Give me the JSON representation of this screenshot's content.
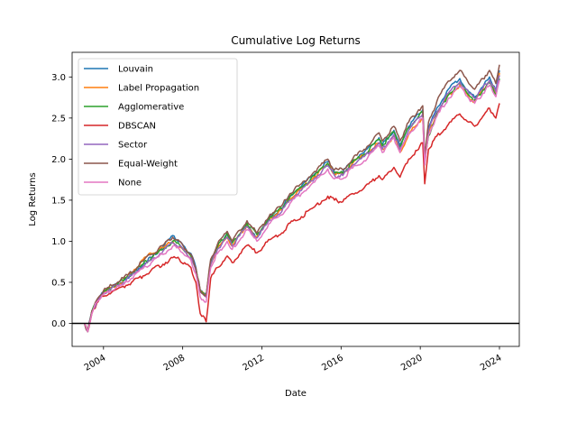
{
  "chart_data": {
    "type": "line",
    "title": "Cumulative Log Returns",
    "xlabel": "Date",
    "ylabel": "Log Returns",
    "xlim": [
      "2002-06-01",
      "2025-01-01"
    ],
    "ylim": [
      -0.28,
      3.3
    ],
    "x_ticks": [
      "2004",
      "2008",
      "2012",
      "2016",
      "2020",
      "2024"
    ],
    "y_ticks": [
      "0.0",
      "0.5",
      "1.0",
      "1.5",
      "2.0",
      "2.5",
      "3.0"
    ],
    "grid": false,
    "legend_position": "top-left",
    "baseline": 0,
    "x": [
      "2003-01-15",
      "2003-03-15",
      "2003-06-01",
      "2003-09-01",
      "2004-01-01",
      "2004-06-01",
      "2005-01-01",
      "2005-06-01",
      "2006-01-01",
      "2006-06-01",
      "2007-01-01",
      "2007-07-01",
      "2007-11-01",
      "2008-03-01",
      "2008-06-01",
      "2008-09-01",
      "2008-11-20",
      "2009-03-09",
      "2009-06-01",
      "2009-10-01",
      "2010-04-01",
      "2010-07-01",
      "2011-04-01",
      "2011-10-01",
      "2012-06-01",
      "2013-01-01",
      "2013-06-01",
      "2014-01-01",
      "2014-09-01",
      "2015-05-01",
      "2015-09-01",
      "2016-02-01",
      "2016-08-01",
      "2017-03-01",
      "2017-12-01",
      "2018-02-01",
      "2018-09-01",
      "2018-12-24",
      "2019-06-01",
      "2019-12-01",
      "2020-02-15",
      "2020-03-23",
      "2020-06-01",
      "2020-11-01",
      "2021-06-01",
      "2021-12-31",
      "2022-06-15",
      "2022-10-01",
      "2023-03-01",
      "2023-07-01",
      "2023-10-27",
      "2024-01-01"
    ],
    "series": [
      {
        "name": "Louvain",
        "color": "#1f77b4",
        "values": [
          0.0,
          -0.1,
          0.15,
          0.28,
          0.38,
          0.44,
          0.52,
          0.6,
          0.72,
          0.8,
          0.93,
          1.07,
          1.0,
          0.9,
          0.85,
          0.68,
          0.4,
          0.34,
          0.75,
          0.92,
          1.08,
          0.95,
          1.2,
          1.05,
          1.3,
          1.4,
          1.55,
          1.67,
          1.82,
          1.97,
          1.84,
          1.84,
          1.98,
          2.08,
          2.26,
          2.18,
          2.35,
          2.17,
          2.4,
          2.55,
          2.6,
          2.0,
          2.38,
          2.62,
          2.85,
          2.98,
          2.82,
          2.75,
          2.88,
          3.0,
          2.83,
          3.08
        ]
      },
      {
        "name": "Label Propagation",
        "color": "#ff7f0e",
        "values": [
          0.0,
          -0.1,
          0.15,
          0.28,
          0.37,
          0.44,
          0.52,
          0.62,
          0.78,
          0.85,
          0.92,
          1.0,
          0.93,
          0.86,
          0.8,
          0.65,
          0.4,
          0.34,
          0.72,
          0.9,
          1.05,
          0.94,
          1.2,
          1.05,
          1.28,
          1.38,
          1.52,
          1.64,
          1.79,
          1.94,
          1.82,
          1.82,
          1.95,
          2.05,
          2.2,
          2.12,
          2.28,
          2.08,
          2.3,
          2.45,
          2.5,
          1.95,
          2.32,
          2.55,
          2.78,
          2.9,
          2.75,
          2.7,
          2.85,
          2.95,
          2.8,
          3.05
        ]
      },
      {
        "name": "Agglomerative",
        "color": "#2ca02c",
        "values": [
          0.0,
          -0.1,
          0.15,
          0.28,
          0.38,
          0.44,
          0.52,
          0.6,
          0.72,
          0.8,
          0.9,
          1.0,
          0.96,
          0.88,
          0.82,
          0.66,
          0.4,
          0.34,
          0.76,
          0.93,
          1.1,
          0.98,
          1.22,
          1.08,
          1.3,
          1.4,
          1.54,
          1.66,
          1.8,
          1.95,
          1.83,
          1.83,
          1.96,
          2.06,
          2.24,
          2.16,
          2.33,
          2.15,
          2.38,
          2.52,
          2.57,
          1.97,
          2.28,
          2.55,
          2.78,
          2.92,
          2.78,
          2.72,
          2.84,
          2.93,
          2.78,
          2.98
        ]
      },
      {
        "name": "DBSCAN",
        "color": "#d62728",
        "values": [
          0.0,
          -0.1,
          0.12,
          0.25,
          0.33,
          0.38,
          0.45,
          0.5,
          0.58,
          0.65,
          0.72,
          0.8,
          0.78,
          0.72,
          0.68,
          0.5,
          0.12,
          0.02,
          0.55,
          0.68,
          0.82,
          0.74,
          0.95,
          0.86,
          1.02,
          1.1,
          1.22,
          1.3,
          1.42,
          1.55,
          1.5,
          1.48,
          1.58,
          1.65,
          1.8,
          1.75,
          1.9,
          1.78,
          2.0,
          2.12,
          2.2,
          1.7,
          2.12,
          2.28,
          2.42,
          2.55,
          2.45,
          2.4,
          2.52,
          2.62,
          2.5,
          2.68
        ]
      },
      {
        "name": "Sector",
        "color": "#9467bd",
        "values": [
          0.0,
          -0.1,
          0.14,
          0.27,
          0.37,
          0.43,
          0.5,
          0.58,
          0.7,
          0.77,
          0.88,
          0.98,
          0.94,
          0.86,
          0.8,
          0.64,
          0.38,
          0.32,
          0.72,
          0.9,
          1.05,
          0.94,
          1.18,
          1.04,
          1.26,
          1.36,
          1.5,
          1.62,
          1.77,
          1.92,
          1.8,
          1.8,
          1.93,
          2.03,
          2.2,
          2.12,
          2.3,
          2.12,
          2.35,
          2.5,
          2.55,
          1.98,
          2.35,
          2.58,
          2.8,
          2.94,
          2.8,
          2.74,
          2.86,
          2.96,
          2.82,
          3.02
        ]
      },
      {
        "name": "Equal-Weight",
        "color": "#8c564b",
        "values": [
          0.0,
          -0.1,
          0.15,
          0.29,
          0.4,
          0.46,
          0.55,
          0.62,
          0.76,
          0.84,
          0.95,
          1.05,
          1.0,
          0.9,
          0.84,
          0.67,
          0.4,
          0.34,
          0.78,
          0.96,
          1.12,
          1.0,
          1.25,
          1.1,
          1.33,
          1.43,
          1.58,
          1.7,
          1.85,
          2.0,
          1.87,
          1.87,
          2.0,
          2.12,
          2.32,
          2.22,
          2.4,
          2.22,
          2.45,
          2.6,
          2.65,
          2.05,
          2.45,
          2.7,
          2.95,
          3.08,
          2.92,
          2.85,
          2.98,
          3.08,
          2.92,
          3.15
        ]
      },
      {
        "name": "None",
        "color": "#e377c2",
        "values": [
          0.0,
          -0.1,
          0.12,
          0.26,
          0.35,
          0.4,
          0.47,
          0.55,
          0.67,
          0.74,
          0.84,
          0.94,
          0.9,
          0.82,
          0.77,
          0.6,
          0.32,
          0.26,
          0.68,
          0.85,
          1.0,
          0.9,
          1.14,
          1.0,
          1.22,
          1.32,
          1.46,
          1.58,
          1.72,
          1.88,
          1.76,
          1.76,
          1.89,
          1.98,
          2.16,
          2.08,
          2.26,
          2.08,
          2.3,
          2.45,
          2.5,
          1.93,
          2.3,
          2.52,
          2.74,
          2.88,
          2.74,
          2.68,
          2.8,
          2.9,
          2.76,
          2.96
        ]
      }
    ]
  }
}
